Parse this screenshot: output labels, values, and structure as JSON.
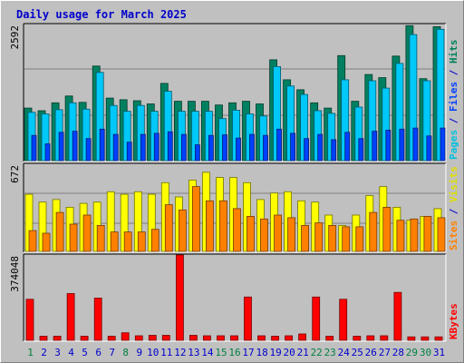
{
  "chart_data": {
    "type": "bar",
    "title": "Daily usage for March 2025",
    "days": [
      "1",
      "2",
      "3",
      "4",
      "5",
      "6",
      "7",
      "8",
      "9",
      "10",
      "11",
      "12",
      "13",
      "14",
      "15",
      "16",
      "17",
      "18",
      "19",
      "20",
      "21",
      "22",
      "23",
      "24",
      "25",
      "26",
      "27",
      "28",
      "29",
      "30",
      "31"
    ],
    "weekend_days": [
      1,
      8,
      15,
      16,
      22,
      23,
      29,
      30
    ],
    "weekend_color": "#008040",
    "weekday_color": "#0000cc",
    "panels": [
      {
        "name": "hits-files-pages",
        "max_label": "2592",
        "ymax": 2592,
        "legend": [
          {
            "text": "Pages",
            "color": "#00c0e0"
          },
          {
            "text": " / ",
            "color": "#0000cc"
          },
          {
            "text": "Files",
            "color": "#0040ff"
          },
          {
            "text": " / ",
            "color": "#0000cc"
          },
          {
            "text": "Hits",
            "color": "#00805c"
          }
        ],
        "series": [
          {
            "name": "Hits",
            "color": "#008060",
            "values": [
              1000,
              950,
              1100,
              1230,
              1110,
              1800,
              1190,
              1160,
              1140,
              1080,
              1470,
              1130,
              1130,
              1130,
              1060,
              1100,
              1130,
              1080,
              1920,
              1540,
              1350,
              1100,
              1000,
              2000,
              1130,
              1640,
              1580,
              1990,
              2570,
              1560,
              2550
            ]
          },
          {
            "name": "Files",
            "color": "#00c8f8",
            "values": [
              920,
              890,
              970,
              1100,
              980,
              1680,
              1050,
              940,
              1050,
              940,
              1320,
              940,
              940,
              940,
              800,
              960,
              890,
              850,
              1790,
              1420,
              1260,
              950,
              900,
              1540,
              1020,
              1520,
              1380,
              1850,
              2400,
              1520,
              2500
            ]
          },
          {
            "name": "Pages",
            "color": "#0040ff",
            "values": [
              480,
              320,
              540,
              560,
              420,
              600,
              500,
              350,
              500,
              520,
              550,
              500,
              300,
              480,
              490,
              430,
              500,
              480,
              600,
              520,
              420,
              500,
              400,
              540,
              420,
              560,
              580,
              600,
              620,
              470,
              620
            ]
          }
        ]
      },
      {
        "name": "visits-sites",
        "max_label": "672",
        "ymax": 672,
        "legend": [
          {
            "text": "Sites",
            "color": "#ff8000"
          },
          {
            "text": " / ",
            "color": "#0000cc"
          },
          {
            "text": "Visits",
            "color": "#e0e000"
          }
        ],
        "series": [
          {
            "name": "Visits",
            "color": "#ffff00",
            "values": [
              440,
              380,
              400,
              340,
              370,
              380,
              460,
              440,
              460,
              440,
              530,
              420,
              550,
              610,
              570,
              570,
              530,
              400,
              450,
              460,
              390,
              380,
              280,
              200,
              280,
              430,
              500,
              340,
              240,
              270,
              330
            ]
          },
          {
            "name": "Sites",
            "color": "#ff8000",
            "values": [
              160,
              140,
              300,
              210,
              280,
              200,
              150,
              150,
              150,
              170,
              360,
              320,
              500,
              390,
              390,
              330,
              270,
              250,
              280,
              260,
              200,
              220,
              200,
              190,
              190,
              300,
              340,
              240,
              250,
              270,
              260
            ]
          }
        ]
      },
      {
        "name": "kbytes",
        "max_label": "374048",
        "ymax": 374048,
        "legend": [
          {
            "text": "KBytes",
            "color": "#ff0000"
          }
        ],
        "series": [
          {
            "name": "KBytes",
            "color": "#ff0000",
            "values": [
              180000,
              18000,
              18000,
              205000,
              18000,
              185000,
              18000,
              33000,
              20000,
              22000,
              22000,
              374048,
              22000,
              20000,
              20000,
              20000,
              190000,
              20000,
              18000,
              20000,
              28000,
              190000,
              18000,
              180000,
              18000,
              20000,
              20000,
              210000,
              15000,
              15000,
              15000
            ]
          }
        ]
      }
    ]
  }
}
